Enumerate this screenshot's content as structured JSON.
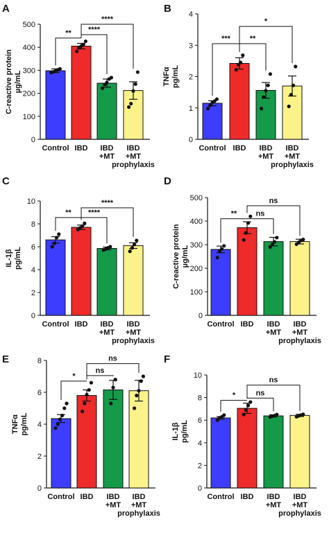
{
  "colors": {
    "Control": "#3d3dff",
    "IBD": "#ee2a2a",
    "IBD +MT": "#159a4a",
    "IBD +MT prophylaxis": "#fbf28a"
  },
  "chart_data": [
    {
      "panel": "A",
      "type": "bar",
      "ylabel": [
        "C-reactive protein",
        "µg/mL"
      ],
      "ylim": [
        0,
        500
      ],
      "yticks": [
        "0",
        "100",
        "200",
        "300",
        "400",
        "500"
      ],
      "categories": [
        [
          "Control"
        ],
        [
          "IBD"
        ],
        [
          "IBD",
          "+MT"
        ],
        [
          "IBD",
          "+MT",
          "prophylaxis"
        ]
      ],
      "values": [
        298,
        405,
        244,
        212
      ],
      "errors": [
        8,
        12,
        18,
        38
      ],
      "points": [
        [
          290,
          293,
          298,
          302,
          306
        ],
        [
          382,
          398,
          405,
          412,
          426
        ],
        [
          222,
          238,
          247,
          262,
          268
        ],
        [
          140,
          155,
          210,
          240,
          292
        ]
      ],
      "significance": [
        {
          "from": 0,
          "to": 1,
          "label": "**",
          "y": 440
        },
        {
          "from": 1,
          "to": 2,
          "label": "****",
          "y": 455
        },
        {
          "from": 1,
          "to": 3,
          "label": "****",
          "y": 500
        }
      ]
    },
    {
      "panel": "B",
      "type": "bar",
      "ylabel": [
        "TNFα",
        "pg/mL"
      ],
      "ylim": [
        0,
        4
      ],
      "yticks": [
        "0",
        "1",
        "2",
        "3",
        "4"
      ],
      "categories": [
        [
          "Control"
        ],
        [
          "IBD"
        ],
        [
          "IBD",
          "+MT"
        ],
        [
          "IBD",
          "+MT",
          "prophylaxis"
        ]
      ],
      "values": [
        1.15,
        2.42,
        1.56,
        1.7
      ],
      "errors": [
        0.08,
        0.18,
        0.25,
        0.32
      ],
      "points": [
        [
          0.98,
          1.08,
          1.18,
          1.22,
          1.28
        ],
        [
          2.22,
          2.38,
          2.45,
          2.68
        ],
        [
          0.98,
          1.35,
          1.55,
          1.72,
          2.08
        ],
        [
          1.05,
          1.42,
          1.72,
          2.32
        ]
      ],
      "significance": [
        {
          "from": 0,
          "to": 1,
          "label": "***",
          "y": 3.05
        },
        {
          "from": 1,
          "to": 2,
          "label": "**",
          "y": 3.05
        },
        {
          "from": 1,
          "to": 3,
          "label": "*",
          "y": 3.6
        }
      ]
    },
    {
      "panel": "C",
      "type": "bar",
      "ylabel": [
        "IL-1β",
        "pg/mL"
      ],
      "ylim": [
        0,
        10
      ],
      "yticks": [
        "0",
        "2",
        "4",
        "6",
        "8",
        "10"
      ],
      "categories": [
        [
          "Control"
        ],
        [
          "IBD"
        ],
        [
          "IBD",
          "+MT"
        ],
        [
          "IBD",
          "+MT",
          "prophylaxis"
        ]
      ],
      "values": [
        6.6,
        7.7,
        5.85,
        6.1
      ],
      "errors": [
        0.28,
        0.2,
        0.12,
        0.25
      ],
      "points": [
        [
          6.0,
          6.3,
          6.8,
          7.1
        ],
        [
          7.5,
          7.65,
          7.8,
          8.05
        ],
        [
          5.72,
          5.8,
          5.9,
          6.0
        ],
        [
          5.6,
          5.9,
          6.2,
          6.55
        ]
      ],
      "significance": [
        {
          "from": 0,
          "to": 1,
          "label": "**",
          "y": 8.55
        },
        {
          "from": 1,
          "to": 2,
          "label": "****",
          "y": 8.55
        },
        {
          "from": 1,
          "to": 3,
          "label": "****",
          "y": 9.4
        }
      ]
    },
    {
      "panel": "D",
      "type": "bar",
      "ylabel": [
        "C-reactive protein",
        "µg/mL"
      ],
      "ylim": [
        0,
        500
      ],
      "yticks": [
        "0",
        "100",
        "200",
        "300",
        "400",
        "500"
      ],
      "categories": [
        [
          "Control"
        ],
        [
          "IBD"
        ],
        [
          "IBD",
          "+MT"
        ],
        [
          "IBD",
          "+MT",
          "prophylaxis"
        ]
      ],
      "values": [
        280,
        372,
        313,
        313
      ],
      "errors": [
        14,
        25,
        18,
        10
      ],
      "points": [
        [
          245,
          272,
          282,
          295
        ],
        [
          320,
          350,
          392,
          420
        ],
        [
          290,
          302,
          312,
          330
        ],
        [
          302,
          310,
          318,
          322
        ]
      ],
      "significance": [
        {
          "from": 0,
          "to": 1,
          "label": "**",
          "y": 410
        },
        {
          "from": 1,
          "to": 2,
          "label": "ns",
          "y": 410
        },
        {
          "from": 1,
          "to": 3,
          "label": "ns",
          "y": 465
        }
      ]
    },
    {
      "panel": "E",
      "type": "bar",
      "ylabel": [
        "TNFα",
        "pg/mL"
      ],
      "ylim": [
        0,
        8
      ],
      "yticks": [
        "0",
        "2",
        "4",
        "6",
        "8"
      ],
      "categories": [
        [
          "Control"
        ],
        [
          "IBD"
        ],
        [
          "IBD",
          "+MT"
        ],
        [
          "IBD",
          "+MT",
          "prophylaxis"
        ]
      ],
      "values": [
        4.35,
        5.8,
        6.15,
        6.1
      ],
      "errors": [
        0.25,
        0.35,
        0.6,
        0.65
      ],
      "points": [
        [
          3.75,
          4.0,
          4.3,
          4.55,
          5.0,
          5.3
        ],
        [
          4.8,
          5.3,
          5.85,
          6.15,
          6.6
        ],
        [
          5.3,
          6.3,
          6.8
        ],
        [
          5.0,
          5.8,
          6.1,
          6.7,
          7.0
        ]
      ],
      "significance": [
        {
          "from": 0,
          "to": 1,
          "label": "*",
          "y": 6.7
        },
        {
          "from": 1,
          "to": 2,
          "label": "ns",
          "y": 7.05
        },
        {
          "from": 1,
          "to": 3,
          "label": "ns",
          "y": 7.8
        }
      ]
    },
    {
      "panel": "F",
      "type": "bar",
      "ylabel": [
        "IL-1β",
        "pg/mL"
      ],
      "ylim": [
        0,
        10
      ],
      "yticks": [
        "0",
        "2",
        "4",
        "6",
        "8",
        "10"
      ],
      "categories": [
        [
          "Control"
        ],
        [
          "IBD"
        ],
        [
          "IBD",
          "+MT"
        ],
        [
          "IBD",
          "+MT",
          "prophylaxis"
        ]
      ],
      "values": [
        6.2,
        7.05,
        6.38,
        6.42
      ],
      "errors": [
        0.12,
        0.45,
        0.1,
        0.1
      ],
      "points": [
        [
          6.0,
          6.2,
          6.3,
          6.45
        ],
        [
          6.5,
          6.9,
          7.3,
          7.6
        ],
        [
          6.28,
          6.35,
          6.4,
          6.5
        ],
        [
          6.3,
          6.38,
          6.45,
          6.52
        ]
      ],
      "significance": [
        {
          "from": 0,
          "to": 1,
          "label": "*",
          "y": 7.75
        },
        {
          "from": 1,
          "to": 2,
          "label": "ns",
          "y": 7.95
        },
        {
          "from": 1,
          "to": 3,
          "label": "ns",
          "y": 9.1
        }
      ]
    }
  ]
}
